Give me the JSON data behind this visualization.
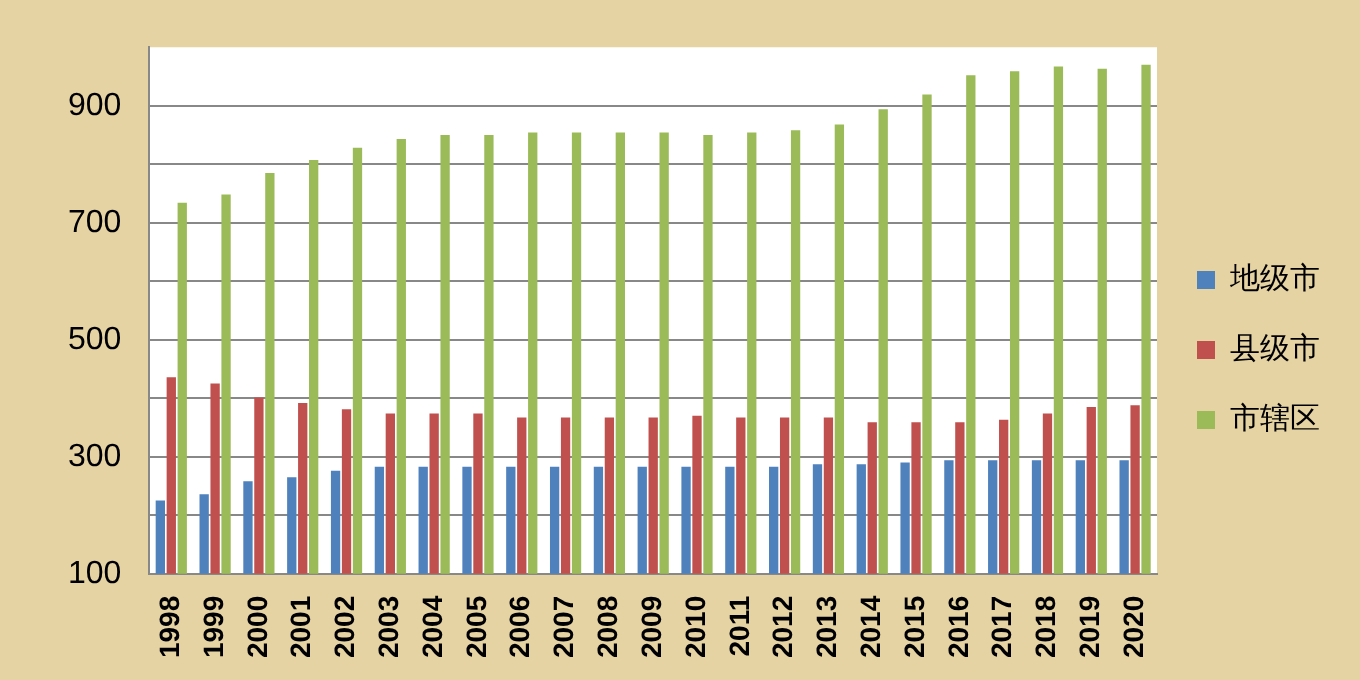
{
  "chart_data": {
    "type": "bar",
    "categories": [
      "1998",
      "1999",
      "2000",
      "2001",
      "2002",
      "2003",
      "2004",
      "2005",
      "2006",
      "2007",
      "2008",
      "2009",
      "2010",
      "2011",
      "2012",
      "2013",
      "2014",
      "2015",
      "2016",
      "2017",
      "2018",
      "2019",
      "2020"
    ],
    "series": [
      {
        "name": "地级市",
        "color": "#4f81bd",
        "values": [
          225,
          236,
          258,
          265,
          276,
          283,
          283,
          283,
          283,
          283,
          283,
          283,
          283,
          283,
          283,
          287,
          287,
          290,
          294,
          294,
          294,
          294,
          294
        ]
      },
      {
        "name": "县级市",
        "color": "#c0504d",
        "values": [
          436,
          425,
          401,
          392,
          381,
          374,
          374,
          374,
          367,
          367,
          367,
          367,
          370,
          367,
          367,
          367,
          359,
          359,
          359,
          363,
          374,
          385,
          388
        ]
      },
      {
        "name": "市辖区",
        "color": "#9bbb59",
        "values": [
          734,
          748,
          785,
          807,
          828,
          843,
          850,
          850,
          854,
          854,
          854,
          854,
          850,
          854,
          858,
          868,
          894,
          919,
          952,
          959,
          967,
          963,
          970
        ]
      }
    ],
    "ylim": [
      100,
      1000
    ],
    "yticks": [
      100,
      {
        "value": 200,
        "label": null
      },
      300,
      {
        "value": 400,
        "label": null
      },
      500,
      {
        "value": 600,
        "label": null
      },
      700,
      {
        "value": 800,
        "label": null
      },
      900
    ],
    "grid": "y",
    "legend": "right"
  }
}
